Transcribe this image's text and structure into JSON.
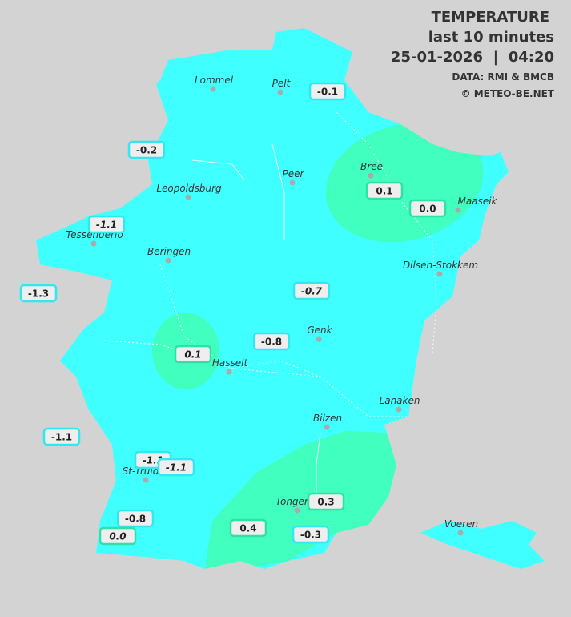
{
  "header": {
    "title": "TEMPERATURE",
    "subtitle": "last 10 minutes",
    "datetime": "25-01-2026  |  04:20",
    "source": "DATA: RMI & BMCB",
    "copyright": "© METEO-BE.NET"
  },
  "cities": [
    {
      "name": "Lommel"
    },
    {
      "name": "Pelt"
    },
    {
      "name": "Peer"
    },
    {
      "name": "Bree"
    },
    {
      "name": "Maaseik"
    },
    {
      "name": "Leopoldsburg"
    },
    {
      "name": "Tessenderlo"
    },
    {
      "name": "Beringen"
    },
    {
      "name": "Dilsen-Stokkem"
    },
    {
      "name": "Genk"
    },
    {
      "name": "Hasselt"
    },
    {
      "name": "Lanaken"
    },
    {
      "name": "Bilzen"
    },
    {
      "name": "St-Truiden"
    },
    {
      "name": "Tongeren"
    },
    {
      "name": "Voeren"
    }
  ],
  "stations": [
    {
      "label": "-0.1"
    },
    {
      "label": "-0.2"
    },
    {
      "label": "0.1"
    },
    {
      "label": "0.0"
    },
    {
      "label": "-1.1"
    },
    {
      "label": "-1.3"
    },
    {
      "label": "-0.7"
    },
    {
      "label": "-0.8"
    },
    {
      "label": "0.1"
    },
    {
      "label": "-1.1"
    },
    {
      "label": "-1.1"
    },
    {
      "label": "-1.1"
    },
    {
      "label": "0.3"
    },
    {
      "label": "-0.8"
    },
    {
      "label": "0.4"
    },
    {
      "label": "-0.3"
    },
    {
      "label": "0.0"
    }
  ]
}
